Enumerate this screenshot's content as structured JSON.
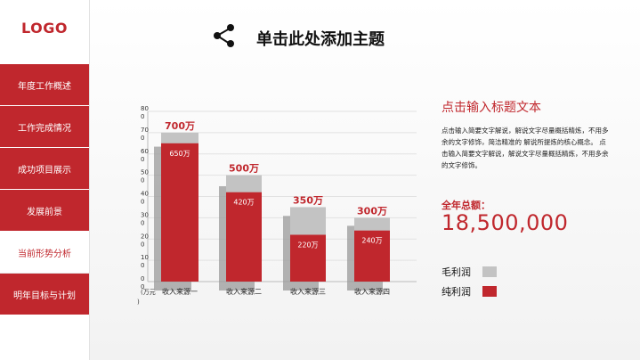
{
  "logo": "LOGO",
  "nav": [
    {
      "label": "年度工作概述"
    },
    {
      "label": "工作完成情况"
    },
    {
      "label": "成功项目展示"
    },
    {
      "label": "发展前景"
    },
    {
      "label": "当前形势分析"
    },
    {
      "label": "明年目标与计划"
    }
  ],
  "header": {
    "title": "单击此处添加主题"
  },
  "side": {
    "title": "点击输入标题文本",
    "desc": "点击输入简要文字解说，解说文字尽量概括精炼，不用多余的文字修饰，简洁精准的 解说所提炼的核心概念。 点击输入简要文字解说，解说文字尽量概括精炼，不用多余的文字修饰。",
    "total_label": "全年总额：",
    "total_value": "18,500,000"
  },
  "colors": {
    "accent": "#c0272d",
    "gross": "#c3c3c3",
    "net": "#c0272d",
    "shadow": "#999999"
  },
  "chart_data": {
    "type": "bar",
    "categories": [
      "收入来源一",
      "收入来源二",
      "收入来源三",
      "收入来源四"
    ],
    "series": [
      {
        "name": "毛利润",
        "values": [
          700,
          500,
          350,
          300
        ]
      },
      {
        "name": "纯利润",
        "values": [
          650,
          420,
          220,
          240
        ]
      }
    ],
    "total_labels": [
      "700万",
      "500万",
      "350万",
      "300万"
    ],
    "net_labels": [
      "650万",
      "420万",
      "220万",
      "240万"
    ],
    "yticks": [
      "80",
      "70",
      "60",
      "50",
      "40",
      "30",
      "20",
      "10",
      "0"
    ],
    "tick_suffix": "0",
    "unit": "(万元)",
    "ylim": [
      0,
      800
    ],
    "legend": "right"
  }
}
